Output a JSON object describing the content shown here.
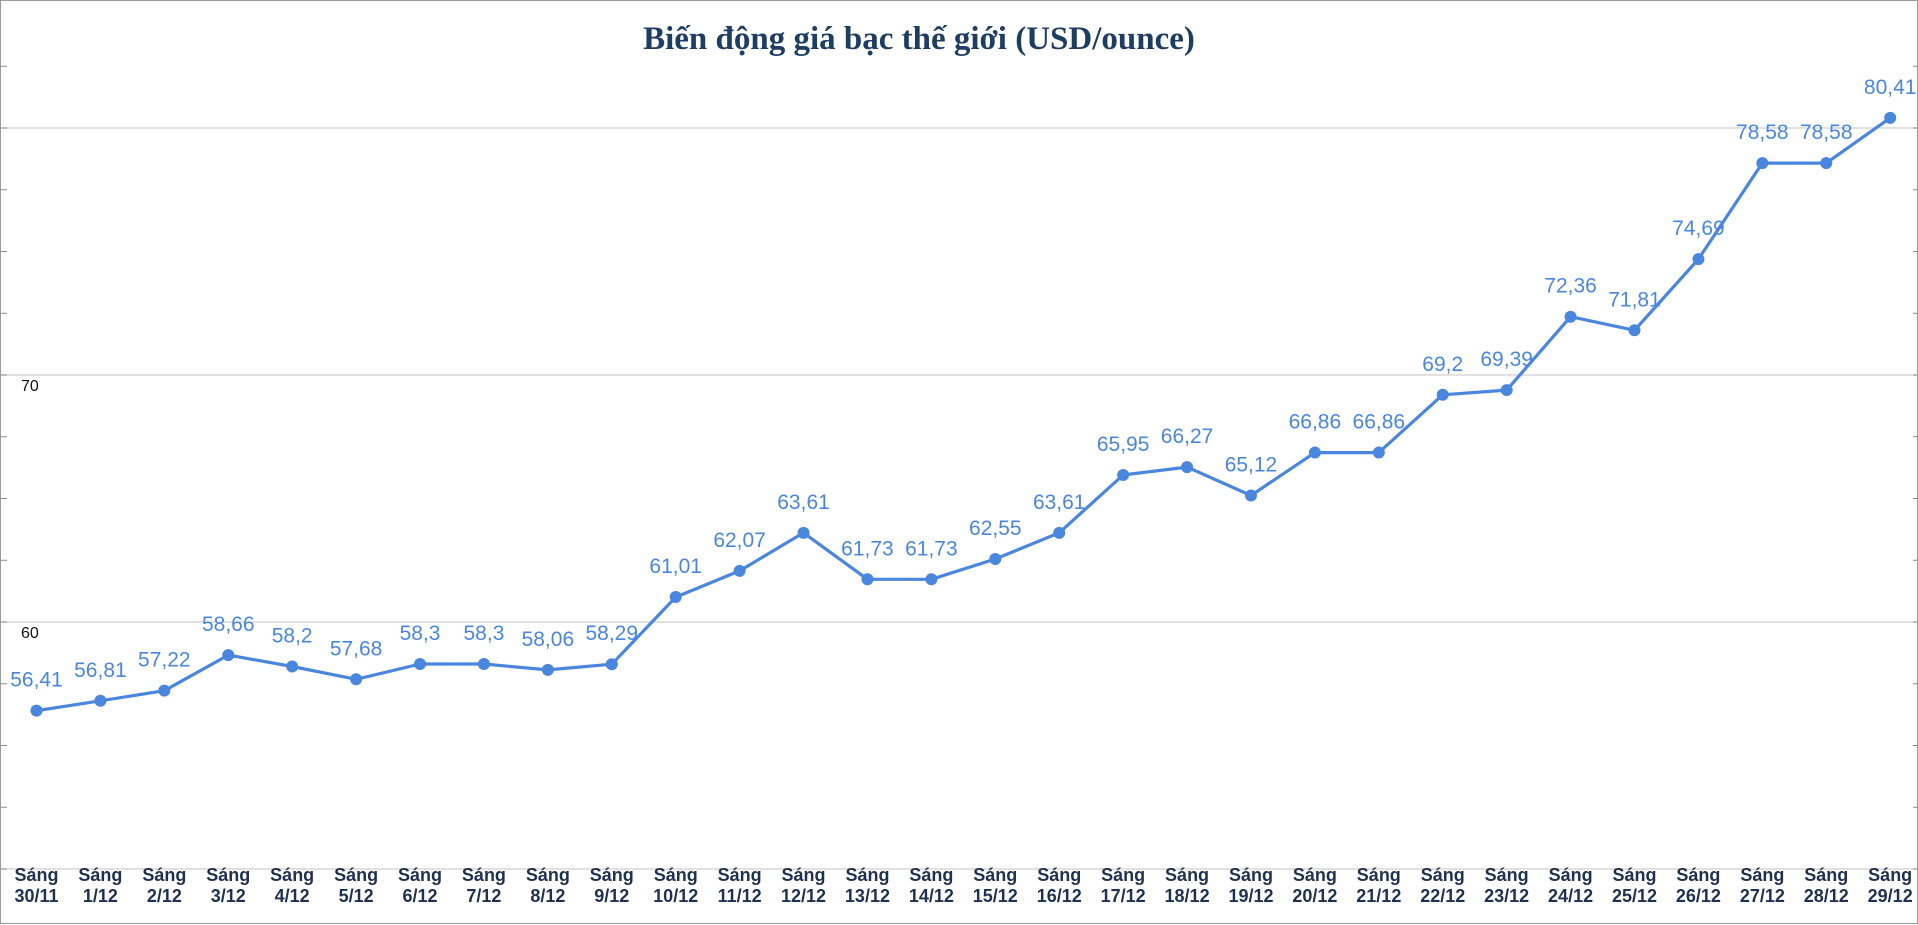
{
  "chart_data": {
    "type": "line",
    "title": "Biến động giá bạc thế giới (USD/ounce)",
    "xlabel": "",
    "ylabel": "",
    "ylim": [
      50,
      82.5
    ],
    "yticks": [
      60,
      70
    ],
    "categories": [
      [
        "Sáng",
        "30/11"
      ],
      [
        "Sáng",
        "1/12"
      ],
      [
        "Sáng",
        "2/12"
      ],
      [
        "Sáng",
        "3/12"
      ],
      [
        "Sáng",
        "4/12"
      ],
      [
        "Sáng",
        "5/12"
      ],
      [
        "Sáng",
        "6/12"
      ],
      [
        "Sáng",
        "7/12"
      ],
      [
        "Sáng",
        "8/12"
      ],
      [
        "Sáng",
        "9/12"
      ],
      [
        "Sáng",
        "10/12"
      ],
      [
        "Sáng",
        "11/12"
      ],
      [
        "Sáng",
        "12/12"
      ],
      [
        "Sáng",
        "13/12"
      ],
      [
        "Sáng",
        "14/12"
      ],
      [
        "Sáng",
        "15/12"
      ],
      [
        "Sáng",
        "16/12"
      ],
      [
        "Sáng",
        "17/12"
      ],
      [
        "Sáng",
        "18/12"
      ],
      [
        "Sáng",
        "19/12"
      ],
      [
        "Sáng",
        "20/12"
      ],
      [
        "Sáng",
        "21/12"
      ],
      [
        "Sáng",
        "22/12"
      ],
      [
        "Sáng",
        "23/12"
      ],
      [
        "Sáng",
        "24/12"
      ],
      [
        "Sáng",
        "25/12"
      ],
      [
        "Sáng",
        "26/12"
      ],
      [
        "Sáng",
        "27/12"
      ],
      [
        "Sáng",
        "28/12"
      ],
      [
        "Sáng",
        "29/12"
      ]
    ],
    "values": [
      56.41,
      56.81,
      57.22,
      58.66,
      58.2,
      57.68,
      58.3,
      58.3,
      58.06,
      58.29,
      61.01,
      62.07,
      63.61,
      61.73,
      61.73,
      62.55,
      63.61,
      65.95,
      66.27,
      65.12,
      66.86,
      66.86,
      69.2,
      69.39,
      72.36,
      71.81,
      74.69,
      78.58,
      78.58,
      80.41
    ],
    "labels": [
      "56,41",
      "56,81",
      "57,22",
      "58,66",
      "58,2",
      "57,68",
      "58,3",
      "58,3",
      "58,06",
      "58,29",
      "61,01",
      "62,07",
      "63,61",
      "61,73",
      "61,73",
      "62,55",
      "63,61",
      "65,95",
      "66,27",
      "65,12",
      "66,86",
      "66,86",
      "69,2",
      "69,39",
      "72,36",
      "71,81",
      "74,69",
      "78,58",
      "78,58",
      "80,41"
    ],
    "grid": true,
    "legend": "none",
    "colors": {
      "line": "#4a86de",
      "title": "#1e3d63",
      "x_labels": "#1e3150"
    }
  }
}
